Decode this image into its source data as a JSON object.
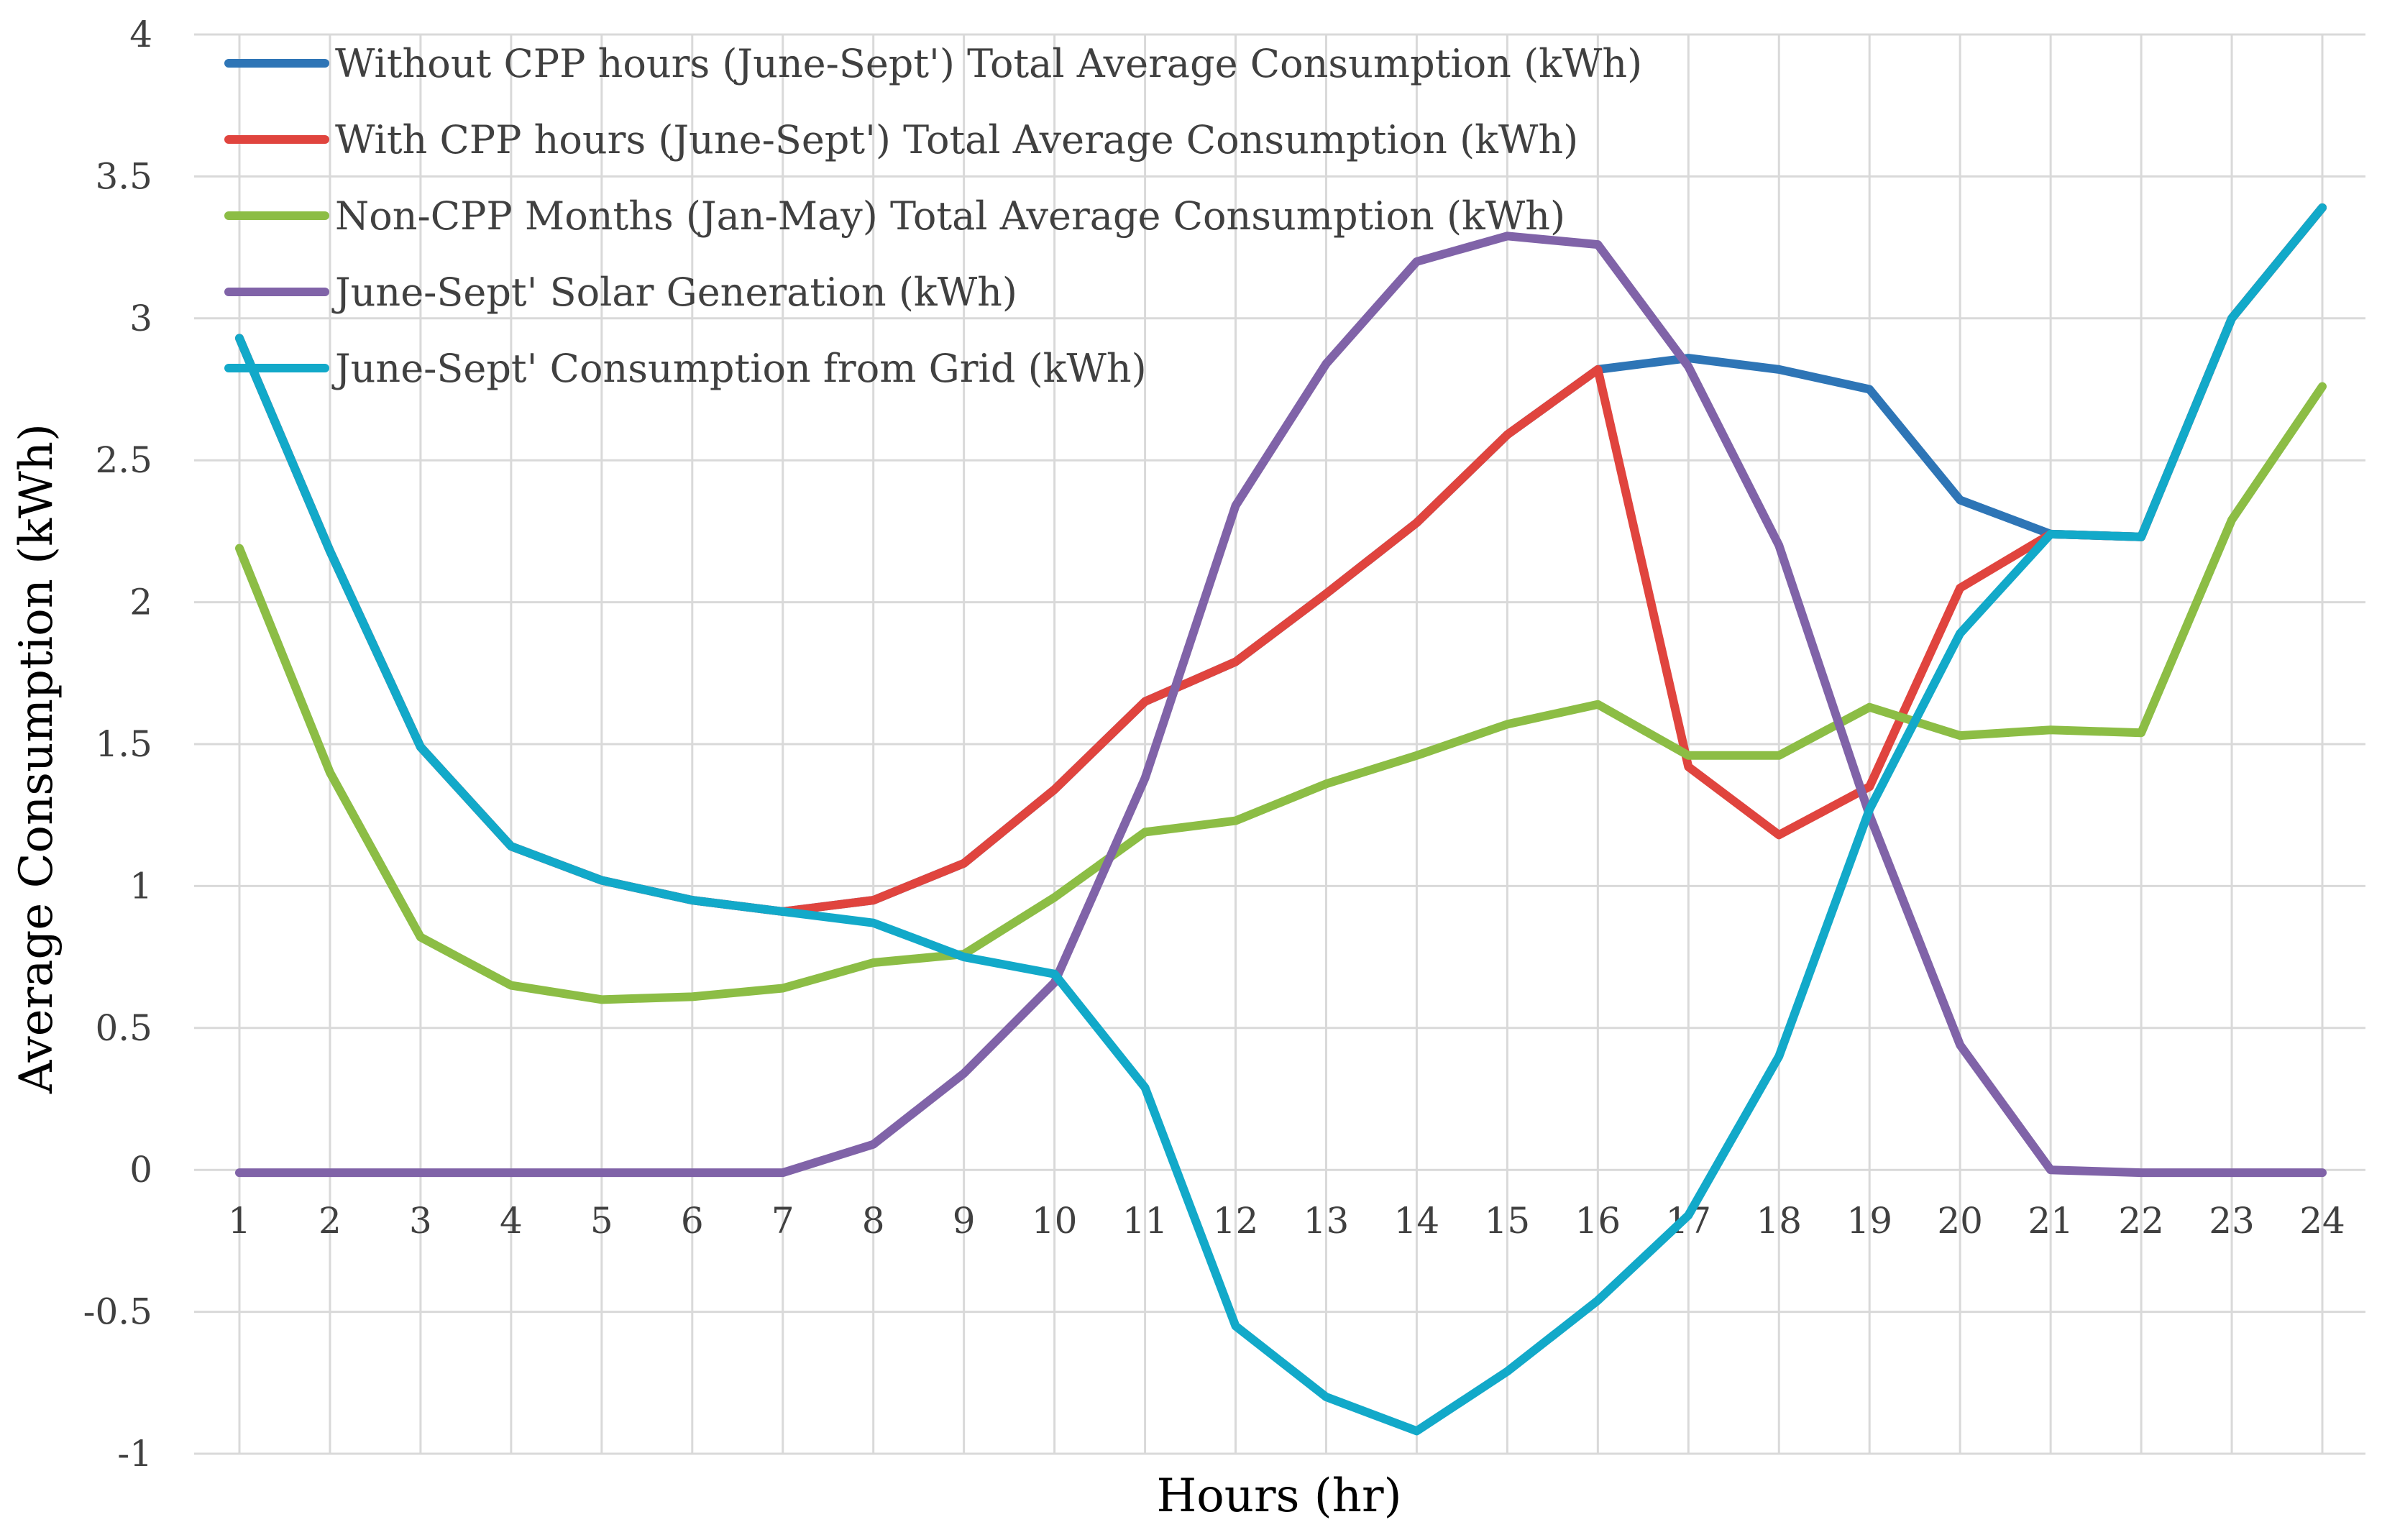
{
  "chart_data": {
    "type": "line",
    "title": "",
    "xlabel": "Hours (hr)",
    "ylabel": "Average Consumption (kWh)",
    "categories": [
      "1",
      "2",
      "3",
      "4",
      "5",
      "6",
      "7",
      "8",
      "9",
      "10",
      "11",
      "12",
      "13",
      "14",
      "15",
      "16",
      "17",
      "18",
      "19",
      "20",
      "21",
      "22",
      "23",
      "24"
    ],
    "ylim": [
      -1,
      4
    ],
    "yticks": [
      -1,
      -0.5,
      0,
      0.5,
      1,
      1.5,
      2,
      2.5,
      3,
      3.5,
      4
    ],
    "ytick_labels": [
      "-1",
      "-0.5",
      "0",
      "0.5",
      "1",
      "1.5",
      "2",
      "2.5",
      "3",
      "3.5",
      "4"
    ],
    "grid": true,
    "legend_position": "top-left",
    "series": [
      {
        "name": "Without CPP hours (June-Sept') Total Average Consumption (kWh)",
        "color": "#2e75b6",
        "values": [
          2.93,
          2.18,
          1.49,
          1.14,
          1.02,
          0.95,
          0.91,
          0.95,
          1.08,
          1.34,
          1.65,
          1.79,
          2.03,
          2.28,
          2.59,
          2.82,
          2.86,
          2.82,
          2.75,
          2.36,
          2.24,
          2.23,
          3.0,
          3.39
        ]
      },
      {
        "name": "With CPP hours (June-Sept') Total Average Consumption (kWh)",
        "color": "#e0443e",
        "values": [
          2.93,
          2.18,
          1.49,
          1.14,
          1.02,
          0.95,
          0.91,
          0.95,
          1.08,
          1.34,
          1.65,
          1.79,
          2.03,
          2.28,
          2.59,
          2.82,
          1.42,
          1.18,
          1.35,
          2.05,
          2.24,
          2.23,
          3.0,
          3.39
        ]
      },
      {
        "name": "Non-CPP Months (Jan-May) Total Average Consumption (kWh)",
        "color": "#8cbd45",
        "values": [
          2.19,
          1.4,
          0.82,
          0.65,
          0.6,
          0.61,
          0.64,
          0.73,
          0.76,
          0.96,
          1.19,
          1.23,
          1.36,
          1.46,
          1.57,
          1.64,
          1.46,
          1.46,
          1.63,
          1.53,
          1.55,
          1.54,
          2.29,
          2.76
        ]
      },
      {
        "name": "June-Sept' Solar Generation (kWh)",
        "color": "#8063a8",
        "values": [
          -0.01,
          -0.01,
          -0.01,
          -0.01,
          -0.01,
          -0.01,
          -0.01,
          0.09,
          0.34,
          0.66,
          1.38,
          2.34,
          2.84,
          3.2,
          3.29,
          3.26,
          2.83,
          2.2,
          1.25,
          0.44,
          0.0,
          -0.01,
          -0.01,
          -0.01
        ]
      },
      {
        "name": "June-Sept' Consumption from Grid (kWh)",
        "color": "#12a9c9",
        "values": [
          2.93,
          2.18,
          1.49,
          1.14,
          1.02,
          0.95,
          0.91,
          0.87,
          0.75,
          0.69,
          0.29,
          -0.55,
          -0.8,
          -0.92,
          -0.71,
          -0.46,
          -0.16,
          0.4,
          1.27,
          1.89,
          2.24,
          2.23,
          3.0,
          3.39
        ]
      }
    ]
  }
}
